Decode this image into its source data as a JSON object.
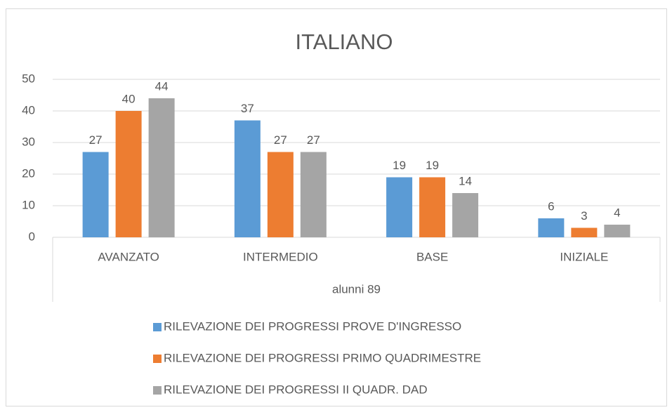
{
  "chart_data": {
    "type": "bar",
    "title": "ITALIANO",
    "categories": [
      "AVANZATO",
      "INTERMEDIO",
      "BASE",
      "INIZIALE"
    ],
    "group_label": "alunni 89",
    "series": [
      {
        "name": "RILEVAZIONE DEI PROGRESSI PROVE D'INGRESSO",
        "color": "#5b9bd5",
        "values": [
          27,
          37,
          19,
          6
        ]
      },
      {
        "name": "RILEVAZIONE DEI PROGRESSI PRIMO QUADRIMESTRE",
        "color": "#ed7d31",
        "values": [
          40,
          27,
          19,
          3
        ]
      },
      {
        "name": "RILEVAZIONE DEI PROGRESSI II QUADR. DAD",
        "color": "#a5a5a5",
        "values": [
          44,
          27,
          14,
          4
        ]
      }
    ],
    "ylim": [
      0,
      50
    ],
    "yticks": [
      0,
      10,
      20,
      30,
      40,
      50
    ],
    "grid": true,
    "legend": "bottom"
  }
}
